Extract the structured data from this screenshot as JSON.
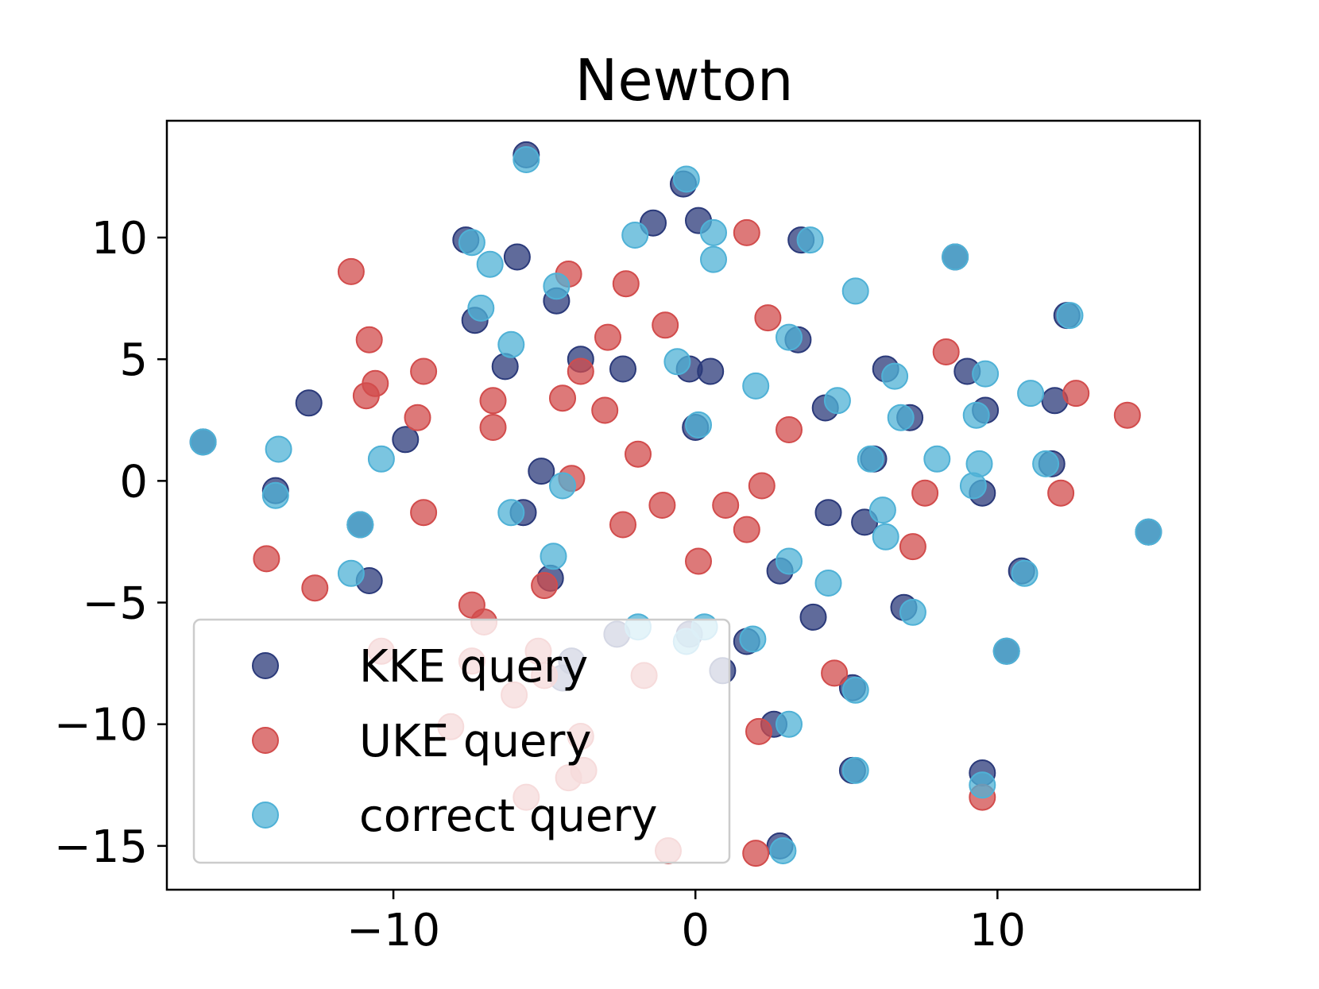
{
  "chart_data": {
    "type": "scatter",
    "title": "Newton",
    "xlabel": "",
    "ylabel": "",
    "xlim": [
      -17.5,
      16.7
    ],
    "ylim": [
      -16.8,
      14.8
    ],
    "xticks": [
      -10,
      0,
      10
    ],
    "yticks": [
      10,
      5,
      0,
      -5,
      -10,
      -15
    ],
    "xtick_labels": [
      "−10",
      "0",
      "10"
    ],
    "ytick_labels": [
      "10",
      "5",
      "0",
      "−5",
      "−10",
      "−15"
    ],
    "grid": false,
    "legend_position": "lower-left",
    "series": [
      {
        "name": "KKE query",
        "color": "#2b3a7a",
        "points": [
          [
            -5.6,
            13.4
          ],
          [
            -0.4,
            12.2
          ],
          [
            -1.4,
            10.6
          ],
          [
            0.1,
            10.7
          ],
          [
            3.5,
            9.9
          ],
          [
            8.6,
            9.2
          ],
          [
            -7.6,
            9.9
          ],
          [
            -5.9,
            9.2
          ],
          [
            -7.3,
            6.6
          ],
          [
            -4.6,
            7.4
          ],
          [
            -3.8,
            5.0
          ],
          [
            -6.3,
            4.7
          ],
          [
            -2.4,
            4.6
          ],
          [
            -0.2,
            4.6
          ],
          [
            0.5,
            4.5
          ],
          [
            0.0,
            2.2
          ],
          [
            3.4,
            5.8
          ],
          [
            6.3,
            4.6
          ],
          [
            9.0,
            4.5
          ],
          [
            4.3,
            3.0
          ],
          [
            7.1,
            2.6
          ],
          [
            9.6,
            2.9
          ],
          [
            11.9,
            3.3
          ],
          [
            12.3,
            6.8
          ],
          [
            -12.8,
            3.2
          ],
          [
            -9.6,
            1.7
          ],
          [
            -16.3,
            1.6
          ],
          [
            -5.1,
            0.4
          ],
          [
            5.9,
            0.9
          ],
          [
            11.8,
            0.7
          ],
          [
            -13.9,
            -0.4
          ],
          [
            -5.7,
            -1.3
          ],
          [
            4.4,
            -1.3
          ],
          [
            5.6,
            -1.7
          ],
          [
            9.5,
            -0.5
          ],
          [
            15.0,
            -2.1
          ],
          [
            -11.1,
            -1.8
          ],
          [
            -10.8,
            -4.1
          ],
          [
            -4.8,
            -4.0
          ],
          [
            2.8,
            -3.7
          ],
          [
            10.8,
            -3.7
          ],
          [
            3.9,
            -5.6
          ],
          [
            6.9,
            -5.2
          ],
          [
            -2.6,
            -6.3
          ],
          [
            -0.2,
            -6.3
          ],
          [
            1.7,
            -6.6
          ],
          [
            -4.1,
            -7.4
          ],
          [
            -4.4,
            -8.1
          ],
          [
            0.9,
            -7.8
          ],
          [
            10.3,
            -7.0
          ],
          [
            5.2,
            -8.5
          ],
          [
            2.6,
            -10.0
          ],
          [
            5.2,
            -11.9
          ],
          [
            9.5,
            -12.0
          ],
          [
            2.8,
            -15.0
          ]
        ]
      },
      {
        "name": "UKE query",
        "color": "#d24c4c",
        "points": [
          [
            -11.4,
            8.6
          ],
          [
            -4.2,
            8.5
          ],
          [
            -2.3,
            8.1
          ],
          [
            1.7,
            10.2
          ],
          [
            -1.0,
            6.4
          ],
          [
            2.4,
            6.7
          ],
          [
            -2.9,
            5.9
          ],
          [
            -10.8,
            5.8
          ],
          [
            -10.6,
            4.0
          ],
          [
            -9.0,
            4.5
          ],
          [
            -3.8,
            4.5
          ],
          [
            -10.9,
            3.5
          ],
          [
            -6.7,
            3.3
          ],
          [
            -4.4,
            3.4
          ],
          [
            -9.2,
            2.6
          ],
          [
            -6.7,
            2.2
          ],
          [
            -3.0,
            2.9
          ],
          [
            3.1,
            2.1
          ],
          [
            8.3,
            5.3
          ],
          [
            12.6,
            3.6
          ],
          [
            14.3,
            2.7
          ],
          [
            -1.9,
            1.1
          ],
          [
            -4.1,
            0.1
          ],
          [
            2.2,
            -0.2
          ],
          [
            7.6,
            -0.5
          ],
          [
            12.1,
            -0.5
          ],
          [
            -9.0,
            -1.3
          ],
          [
            -1.1,
            -1.0
          ],
          [
            1.0,
            -1.0
          ],
          [
            -2.4,
            -1.8
          ],
          [
            1.7,
            -2.0
          ],
          [
            7.2,
            -2.7
          ],
          [
            -14.2,
            -3.2
          ],
          [
            0.1,
            -3.3
          ],
          [
            -12.6,
            -4.4
          ],
          [
            -5.0,
            -4.3
          ],
          [
            -7.4,
            -5.1
          ],
          [
            -7.0,
            -5.8
          ],
          [
            -10.4,
            -7.0
          ],
          [
            -7.4,
            -7.4
          ],
          [
            -5.2,
            -7.0
          ],
          [
            -5.0,
            -8.0
          ],
          [
            -1.7,
            -8.0
          ],
          [
            4.6,
            -7.9
          ],
          [
            -6.0,
            -8.8
          ],
          [
            -8.1,
            -10.1
          ],
          [
            -3.8,
            -10.5
          ],
          [
            2.1,
            -10.3
          ],
          [
            -4.2,
            -12.2
          ],
          [
            -3.7,
            -11.9
          ],
          [
            -5.6,
            -13.0
          ],
          [
            -0.9,
            -15.2
          ],
          [
            2.0,
            -15.3
          ],
          [
            9.5,
            -13.0
          ]
        ]
      },
      {
        "name": "correct query",
        "color": "#4fb1d6",
        "points": [
          [
            -5.6,
            13.2
          ],
          [
            -0.3,
            12.4
          ],
          [
            -2.0,
            10.1
          ],
          [
            0.6,
            10.2
          ],
          [
            0.6,
            9.1
          ],
          [
            3.8,
            9.9
          ],
          [
            8.6,
            9.2
          ],
          [
            -7.4,
            9.8
          ],
          [
            -6.8,
            8.9
          ],
          [
            -7.1,
            7.1
          ],
          [
            -4.6,
            8.0
          ],
          [
            5.3,
            7.8
          ],
          [
            -6.1,
            5.6
          ],
          [
            -0.6,
            4.9
          ],
          [
            3.1,
            5.9
          ],
          [
            2.0,
            3.9
          ],
          [
            4.7,
            3.3
          ],
          [
            6.6,
            4.3
          ],
          [
            9.6,
            4.4
          ],
          [
            9.3,
            2.7
          ],
          [
            11.1,
            3.6
          ],
          [
            6.8,
            2.6
          ],
          [
            12.4,
            6.8
          ],
          [
            0.1,
            2.3
          ],
          [
            -13.8,
            1.3
          ],
          [
            -10.4,
            0.9
          ],
          [
            -16.3,
            1.6
          ],
          [
            -4.4,
            -0.2
          ],
          [
            5.8,
            0.9
          ],
          [
            8.0,
            0.9
          ],
          [
            9.4,
            0.7
          ],
          [
            9.2,
            -0.2
          ],
          [
            11.6,
            0.7
          ],
          [
            -13.9,
            -0.6
          ],
          [
            -6.1,
            -1.3
          ],
          [
            6.2,
            -1.2
          ],
          [
            6.3,
            -2.3
          ],
          [
            15.0,
            -2.1
          ],
          [
            -11.1,
            -1.8
          ],
          [
            -4.7,
            -3.1
          ],
          [
            -11.4,
            -3.8
          ],
          [
            3.1,
            -3.3
          ],
          [
            10.9,
            -3.8
          ],
          [
            4.4,
            -4.2
          ],
          [
            7.2,
            -5.4
          ],
          [
            -1.9,
            -6.0
          ],
          [
            0.3,
            -6.0
          ],
          [
            -0.3,
            -6.6
          ],
          [
            1.9,
            -6.5
          ],
          [
            10.3,
            -7.0
          ],
          [
            5.3,
            -8.6
          ],
          [
            3.1,
            -10.0
          ],
          [
            5.3,
            -11.9
          ],
          [
            9.5,
            -12.5
          ],
          [
            2.9,
            -15.2
          ]
        ]
      }
    ]
  }
}
